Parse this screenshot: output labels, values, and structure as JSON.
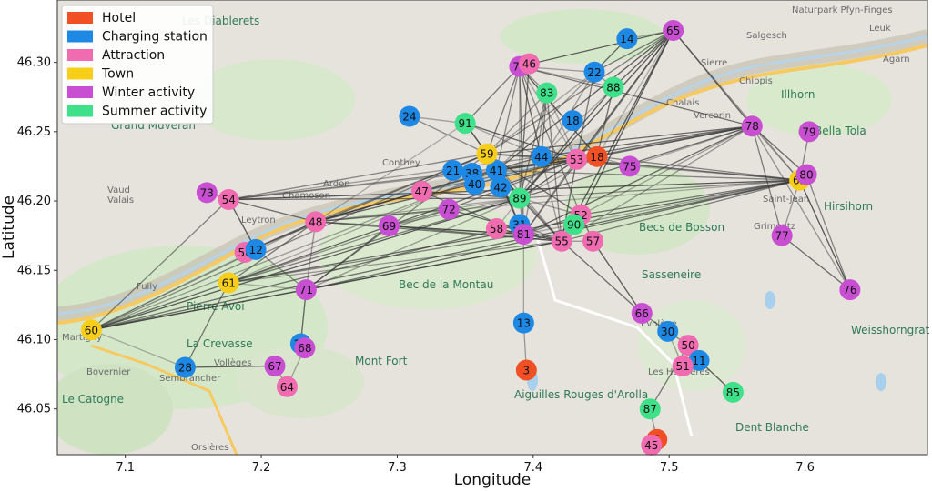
{
  "chart_data": {
    "type": "scatter",
    "xlabel": "Longitude",
    "ylabel": "Latitude",
    "xlim": [
      7.05,
      7.69
    ],
    "ylim": [
      6.017,
      46.345
    ],
    "xticks": [
      7.1,
      7.2,
      7.3,
      7.4,
      7.5,
      7.6
    ],
    "yticks": [
      46.05,
      46.1,
      46.15,
      46.2,
      46.25,
      46.3
    ],
    "xtick_labels": [
      "7.1",
      "7.2",
      "7.3",
      "7.4",
      "7.5",
      "7.6"
    ],
    "ytick_labels": [
      "46.05",
      "46.10",
      "46.15",
      "46.20",
      "46.25",
      "46.30"
    ],
    "legend": [
      {
        "name": "Hotel",
        "color": "#f05023"
      },
      {
        "name": "Charging station",
        "color": "#1e88e5"
      },
      {
        "name": "Attraction",
        "color": "#f06bb0"
      },
      {
        "name": "Town",
        "color": "#f7cf1a"
      },
      {
        "name": "Winter activity",
        "color": "#c94fd2"
      },
      {
        "name": "Summer activity",
        "color": "#3fe08a"
      }
    ],
    "nodes": [
      {
        "id": "60",
        "cat": "Town",
        "x": 7.075,
        "y": 46.107
      },
      {
        "id": "28",
        "cat": "Charging station",
        "x": 7.144,
        "y": 46.08
      },
      {
        "id": "61",
        "cat": "Town",
        "x": 7.176,
        "y": 46.141
      },
      {
        "id": "56",
        "cat": "Attraction",
        "x": 7.188,
        "y": 46.163
      },
      {
        "id": "12",
        "cat": "Charging station",
        "x": 7.196,
        "y": 46.165
      },
      {
        "id": "73",
        "cat": "Winter activity",
        "x": 7.16,
        "y": 46.206
      },
      {
        "id": "54",
        "cat": "Attraction",
        "x": 7.176,
        "y": 46.201
      },
      {
        "id": "67",
        "cat": "Winter activity",
        "x": 7.21,
        "y": 46.081
      },
      {
        "id": "64",
        "cat": "Attraction",
        "x": 7.219,
        "y": 46.066
      },
      {
        "id": "27",
        "cat": "Charging station",
        "x": 7.229,
        "y": 46.097
      },
      {
        "id": "68",
        "cat": "Winter activity",
        "x": 7.232,
        "y": 46.094
      },
      {
        "id": "71",
        "cat": "Winter activity",
        "x": 7.233,
        "y": 46.136
      },
      {
        "id": "48",
        "cat": "Attraction",
        "x": 7.24,
        "y": 46.185
      },
      {
        "id": "69",
        "cat": "Winter activity",
        "x": 7.294,
        "y": 46.182
      },
      {
        "id": "47",
        "cat": "Attraction",
        "x": 7.318,
        "y": 46.207
      },
      {
        "id": "72",
        "cat": "Winter activity",
        "x": 7.338,
        "y": 46.194
      },
      {
        "id": "24",
        "cat": "Charging station",
        "x": 7.309,
        "y": 46.261
      },
      {
        "id": "91",
        "cat": "Summer activity",
        "x": 7.35,
        "y": 46.256
      },
      {
        "id": "21",
        "cat": "Charging station",
        "x": 7.341,
        "y": 46.222
      },
      {
        "id": "38",
        "cat": "Charging station",
        "x": 7.355,
        "y": 46.22
      },
      {
        "id": "40",
        "cat": "Charging station",
        "x": 7.357,
        "y": 46.212
      },
      {
        "id": "41",
        "cat": "Charging station",
        "x": 7.373,
        "y": 46.222
      },
      {
        "id": "42",
        "cat": "Charging station",
        "x": 7.376,
        "y": 46.21
      },
      {
        "id": "59",
        "cat": "Town",
        "x": 7.366,
        "y": 46.234
      },
      {
        "id": "58",
        "cat": "Attraction",
        "x": 7.373,
        "y": 46.18
      },
      {
        "id": "89",
        "cat": "Summer activity",
        "x": 7.39,
        "y": 46.202
      },
      {
        "id": "31",
        "cat": "Charging station",
        "x": 7.39,
        "y": 46.183
      },
      {
        "id": "81",
        "cat": "Winter activity",
        "x": 7.393,
        "y": 46.176
      },
      {
        "id": "44",
        "cat": "Charging station",
        "x": 7.406,
        "y": 46.232
      },
      {
        "id": "55",
        "cat": "Attraction",
        "x": 7.421,
        "y": 46.171
      },
      {
        "id": "52",
        "cat": "Attraction",
        "x": 7.435,
        "y": 46.19
      },
      {
        "id": "90",
        "cat": "Summer activity",
        "x": 7.43,
        "y": 46.183
      },
      {
        "id": "57",
        "cat": "Attraction",
        "x": 7.444,
        "y": 46.171
      },
      {
        "id": "53",
        "cat": "Attraction",
        "x": 7.432,
        "y": 46.23
      },
      {
        "id": "18",
        "cat": "Hotel",
        "x": 7.447,
        "y": 46.232
      },
      {
        "id": "75",
        "cat": "Winter activity",
        "x": 7.471,
        "y": 46.225
      },
      {
        "id": "74",
        "cat": "Winter activity",
        "x": 7.39,
        "y": 46.297
      },
      {
        "id": "46",
        "cat": "Attraction",
        "x": 7.397,
        "y": 46.299
      },
      {
        "id": "83",
        "cat": "Summer activity",
        "x": 7.41,
        "y": 46.278
      },
      {
        "id": "22",
        "cat": "Charging station",
        "x": 7.445,
        "y": 46.293
      },
      {
        "id": "14",
        "cat": "Charging station",
        "x": 7.469,
        "y": 46.317
      },
      {
        "id": "65",
        "cat": "Winter activity",
        "x": 7.503,
        "y": 46.323
      },
      {
        "id": "88",
        "cat": "Summer activity",
        "x": 7.459,
        "y": 46.282
      },
      {
        "id": "18b",
        "label": "18",
        "cat": "Charging station",
        "x": 7.429,
        "y": 46.258
      },
      {
        "id": "13",
        "cat": "Charging station",
        "x": 7.393,
        "y": 46.112
      },
      {
        "id": "3",
        "cat": "Hotel",
        "x": 7.395,
        "y": 46.078
      },
      {
        "id": "87",
        "cat": "Summer activity",
        "x": 7.486,
        "y": 46.05
      },
      {
        "id": "6",
        "cat": "Hotel",
        "x": 7.491,
        "y": 46.028
      },
      {
        "id": "45",
        "cat": "Attraction",
        "x": 7.487,
        "y": 46.024
      },
      {
        "id": "66",
        "cat": "Winter activity",
        "x": 7.48,
        "y": 46.119
      },
      {
        "id": "30",
        "cat": "Charging station",
        "x": 7.499,
        "y": 46.106
      },
      {
        "id": "50",
        "cat": "Attraction",
        "x": 7.514,
        "y": 46.096
      },
      {
        "id": "11",
        "cat": "Charging station",
        "x": 7.522,
        "y": 46.085
      },
      {
        "id": "51",
        "cat": "Attraction",
        "x": 7.51,
        "y": 46.081
      },
      {
        "id": "85",
        "cat": "Summer activity",
        "x": 7.547,
        "y": 46.062
      },
      {
        "id": "78",
        "cat": "Winter activity",
        "x": 7.561,
        "y": 46.254
      },
      {
        "id": "79",
        "cat": "Winter activity",
        "x": 7.603,
        "y": 46.25
      },
      {
        "id": "62",
        "cat": "Town",
        "x": 7.596,
        "y": 46.215
      },
      {
        "id": "80",
        "cat": "Winter activity",
        "x": 7.601,
        "y": 46.219
      },
      {
        "id": "77",
        "cat": "Winter activity",
        "x": 7.583,
        "y": 46.175
      },
      {
        "id": "76",
        "cat": "Winter activity",
        "x": 7.633,
        "y": 46.136
      }
    ],
    "edges": [
      [
        "60",
        "28"
      ],
      [
        "60",
        "61"
      ],
      [
        "60",
        "54"
      ],
      [
        "60",
        "48"
      ],
      [
        "60",
        "71"
      ],
      [
        "60",
        "62"
      ],
      [
        "60",
        "59"
      ],
      [
        "60",
        "41"
      ],
      [
        "60",
        "89"
      ],
      [
        "60",
        "31"
      ],
      [
        "60",
        "55"
      ],
      [
        "60",
        "12"
      ],
      [
        "28",
        "67"
      ],
      [
        "28",
        "61"
      ],
      [
        "67",
        "64"
      ],
      [
        "68",
        "64"
      ],
      [
        "27",
        "71"
      ],
      [
        "61",
        "48"
      ],
      [
        "61",
        "72"
      ],
      [
        "61",
        "41"
      ],
      [
        "61",
        "53"
      ],
      [
        "61",
        "89"
      ],
      [
        "61",
        "55"
      ],
      [
        "61",
        "71"
      ],
      [
        "61",
        "62"
      ],
      [
        "61",
        "81"
      ],
      [
        "73",
        "54"
      ],
      [
        "54",
        "12"
      ],
      [
        "54",
        "48"
      ],
      [
        "54",
        "59"
      ],
      [
        "54",
        "41"
      ],
      [
        "54",
        "62"
      ],
      [
        "54",
        "89"
      ],
      [
        "54",
        "53"
      ],
      [
        "54",
        "44"
      ],
      [
        "56",
        "48"
      ],
      [
        "56",
        "59"
      ],
      [
        "12",
        "71"
      ],
      [
        "48",
        "69"
      ],
      [
        "48",
        "47"
      ],
      [
        "48",
        "72"
      ],
      [
        "48",
        "59"
      ],
      [
        "48",
        "89"
      ],
      [
        "48",
        "53"
      ],
      [
        "48",
        "55"
      ],
      [
        "48",
        "81"
      ],
      [
        "48",
        "62"
      ],
      [
        "48",
        "44"
      ],
      [
        "48",
        "41"
      ],
      [
        "48",
        "71"
      ],
      [
        "48",
        "91"
      ],
      [
        "71",
        "69"
      ],
      [
        "71",
        "59"
      ],
      [
        "71",
        "89"
      ],
      [
        "71",
        "55"
      ],
      [
        "71",
        "62"
      ],
      [
        "69",
        "72"
      ],
      [
        "69",
        "89"
      ],
      [
        "69",
        "81"
      ],
      [
        "69",
        "55"
      ],
      [
        "24",
        "59"
      ],
      [
        "24",
        "91"
      ],
      [
        "91",
        "59"
      ],
      [
        "91",
        "74"
      ],
      [
        "91",
        "89"
      ],
      [
        "91",
        "44"
      ],
      [
        "91",
        "53"
      ],
      [
        "59",
        "74"
      ],
      [
        "59",
        "83"
      ],
      [
        "59",
        "22"
      ],
      [
        "59",
        "89"
      ],
      [
        "59",
        "53"
      ],
      [
        "59",
        "55"
      ],
      [
        "59",
        "62"
      ],
      [
        "59",
        "78"
      ],
      [
        "59",
        "65"
      ],
      [
        "59",
        "44"
      ],
      [
        "59",
        "81"
      ],
      [
        "59",
        "52"
      ],
      [
        "41",
        "74"
      ],
      [
        "41",
        "22"
      ],
      [
        "41",
        "65"
      ],
      [
        "41",
        "78"
      ],
      [
        "41",
        "62"
      ],
      [
        "41",
        "89"
      ],
      [
        "41",
        "53"
      ],
      [
        "41",
        "81"
      ],
      [
        "41",
        "55"
      ],
      [
        "41",
        "18"
      ],
      [
        "47",
        "89"
      ],
      [
        "47",
        "81"
      ],
      [
        "47",
        "53"
      ],
      [
        "72",
        "89"
      ],
      [
        "72",
        "55"
      ],
      [
        "72",
        "53"
      ],
      [
        "58",
        "55"
      ],
      [
        "58",
        "89"
      ],
      [
        "58",
        "81"
      ],
      [
        "31",
        "81"
      ],
      [
        "31",
        "55"
      ],
      [
        "89",
        "74"
      ],
      [
        "89",
        "46"
      ],
      [
        "89",
        "83"
      ],
      [
        "89",
        "22"
      ],
      [
        "89",
        "65"
      ],
      [
        "89",
        "78"
      ],
      [
        "89",
        "62"
      ],
      [
        "89",
        "52"
      ],
      [
        "89",
        "53"
      ],
      [
        "89",
        "55"
      ],
      [
        "89",
        "81"
      ],
      [
        "89",
        "18"
      ],
      [
        "89",
        "88"
      ],
      [
        "81",
        "74"
      ],
      [
        "81",
        "83"
      ],
      [
        "81",
        "13"
      ],
      [
        "81",
        "55"
      ],
      [
        "81",
        "52"
      ],
      [
        "81",
        "53"
      ],
      [
        "81",
        "62"
      ],
      [
        "81",
        "78"
      ],
      [
        "81",
        "65"
      ],
      [
        "55",
        "57"
      ],
      [
        "55",
        "52"
      ],
      [
        "55",
        "53"
      ],
      [
        "55",
        "62"
      ],
      [
        "55",
        "78"
      ],
      [
        "55",
        "65"
      ],
      [
        "55",
        "66"
      ],
      [
        "55",
        "83"
      ],
      [
        "55",
        "74"
      ],
      [
        "52",
        "90"
      ],
      [
        "52",
        "57"
      ],
      [
        "52",
        "74"
      ],
      [
        "52",
        "78"
      ],
      [
        "52",
        "65"
      ],
      [
        "52",
        "62"
      ],
      [
        "53",
        "18"
      ],
      [
        "53",
        "74"
      ],
      [
        "53",
        "65"
      ],
      [
        "53",
        "78"
      ],
      [
        "53",
        "62"
      ],
      [
        "53",
        "83"
      ],
      [
        "53",
        "75"
      ],
      [
        "53",
        "22"
      ],
      [
        "44",
        "74"
      ],
      [
        "44",
        "65"
      ],
      [
        "44",
        "78"
      ],
      [
        "44",
        "83"
      ],
      [
        "44",
        "62"
      ],
      [
        "18",
        "65"
      ],
      [
        "18",
        "78"
      ],
      [
        "18",
        "62"
      ],
      [
        "18",
        "75"
      ],
      [
        "18",
        "74"
      ],
      [
        "18",
        "88"
      ],
      [
        "74",
        "46"
      ],
      [
        "74",
        "22"
      ],
      [
        "74",
        "65"
      ],
      [
        "74",
        "78"
      ],
      [
        "74",
        "83"
      ],
      [
        "74",
        "88"
      ],
      [
        "22",
        "14"
      ],
      [
        "22",
        "65"
      ],
      [
        "22",
        "88"
      ],
      [
        "14",
        "65"
      ],
      [
        "65",
        "78"
      ],
      [
        "65",
        "88"
      ],
      [
        "65",
        "62"
      ],
      [
        "78",
        "62"
      ],
      [
        "78",
        "80"
      ],
      [
        "78",
        "77"
      ],
      [
        "78",
        "76"
      ],
      [
        "78",
        "75"
      ],
      [
        "62",
        "80"
      ],
      [
        "62",
        "79"
      ],
      [
        "62",
        "77"
      ],
      [
        "62",
        "76"
      ],
      [
        "77",
        "76"
      ],
      [
        "80",
        "76"
      ],
      [
        "13",
        "3"
      ],
      [
        "57",
        "66"
      ],
      [
        "66",
        "30"
      ],
      [
        "30",
        "50"
      ],
      [
        "30",
        "51"
      ],
      [
        "11",
        "85"
      ],
      [
        "50",
        "87"
      ],
      [
        "87",
        "6"
      ]
    ]
  },
  "map_labels": [
    "Les Diablerets",
    "Naturpark Pfyn-Finges",
    "Salgesch",
    "Sierre",
    "Chippis",
    "Agarn",
    "Leuk",
    "Chalais",
    "Illhorn",
    "Grand Muveran",
    "Vercorin",
    "Bella Tola",
    "Saint-Jean",
    "Hirsihorn",
    "Conthey",
    "Ardon",
    "Chamoson",
    "Leytron",
    "Becs de Bosson",
    "Grimentz",
    "Fully",
    "Pierre Avoi",
    "Bec de la Montau",
    "Sasseneire",
    "Martigny",
    "La Crevasse",
    "Vollèges",
    "Mont Fort",
    "Evolène",
    "Weisshorngrat",
    "Bovernier",
    "Sembrancher",
    "Les Haudères",
    "Le Catogne",
    "Aiguilles Rouges d'Arolla",
    "Dent Blanche",
    "Orsières",
    "Vaud",
    "Valais"
  ]
}
